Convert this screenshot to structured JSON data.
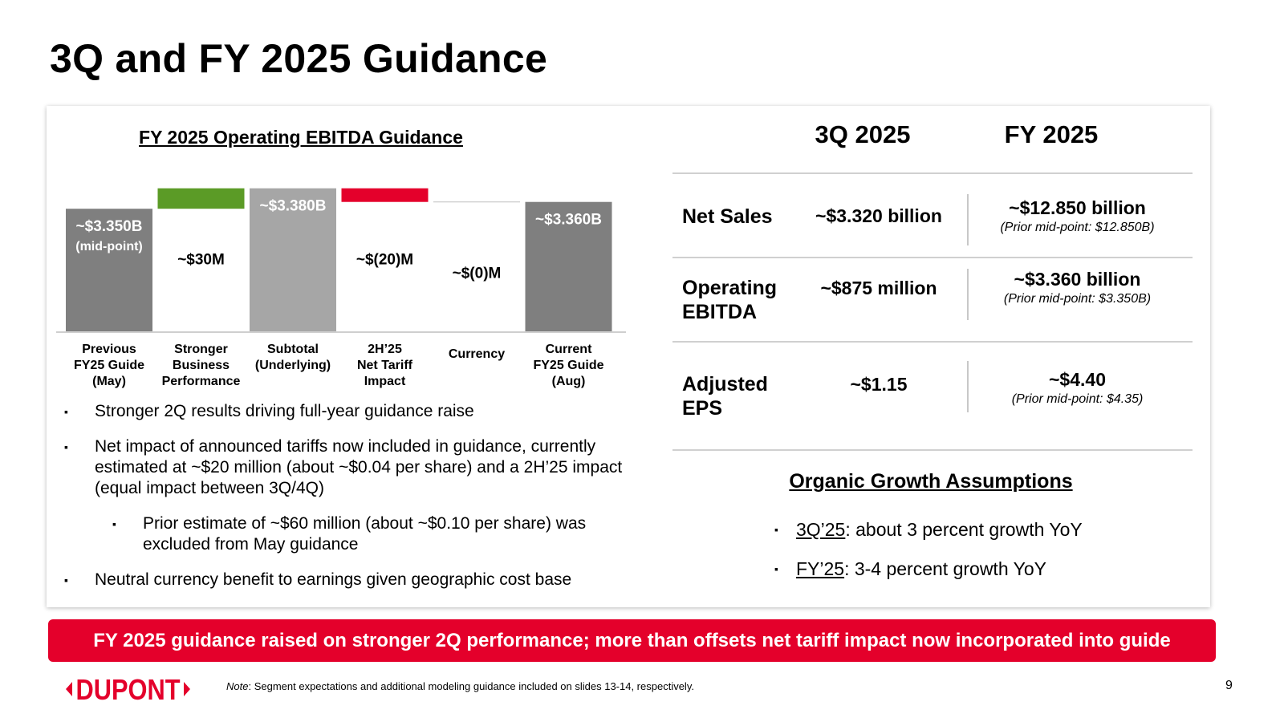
{
  "title": "3Q and FY 2025 Guidance",
  "chart_data": {
    "type": "waterfall",
    "title": "FY 2025 Operating EBITDA Guidance",
    "unit": "$B",
    "ylim": [
      3.17,
      3.395
    ],
    "bars": [
      {
        "label_lines": [
          "Previous",
          "FY25 Guide",
          "(May)"
        ],
        "kind": "total",
        "start": 0,
        "end": 3.35,
        "color": "#7f7f7f",
        "text_lines": [
          "~$3.350B",
          "(mid-point)"
        ],
        "text_pos": "inside"
      },
      {
        "label_lines": [
          "Stronger",
          "Business",
          "Performance"
        ],
        "kind": "increase",
        "start": 3.35,
        "end": 3.38,
        "color": "#5b9b26",
        "text_lines": [
          "~$30M"
        ],
        "text_pos": "below"
      },
      {
        "label_lines": [
          "Subtotal",
          "(Underlying)"
        ],
        "kind": "total",
        "start": 0,
        "end": 3.38,
        "color": "#a6a6a6",
        "text_lines": [
          "~$3.380B"
        ],
        "text_pos": "inside"
      },
      {
        "label_lines": [
          "2H’25",
          "Net Tariff",
          "Impact"
        ],
        "kind": "decrease",
        "start": 3.38,
        "end": 3.36,
        "color": "#e4002b",
        "text_lines": [
          "~$(20)M"
        ],
        "text_pos": "below"
      },
      {
        "label_lines": [
          "Currency"
        ],
        "kind": "neutral",
        "start": 3.36,
        "end": 3.36,
        "color": "#bfbfbf",
        "text_lines": [
          "~$(0)M"
        ],
        "text_pos": "below"
      },
      {
        "label_lines": [
          "Current",
          "FY25 Guide",
          "(Aug)"
        ],
        "kind": "total",
        "start": 0,
        "end": 3.36,
        "color": "#7f7f7f",
        "text_lines": [
          "~$3.360B"
        ],
        "text_pos": "inside"
      }
    ]
  },
  "left_bullets": [
    {
      "text": "Stronger 2Q results driving full-year guidance raise",
      "level": 1
    },
    {
      "text": "Net impact of announced tariffs now included in guidance, currently estimated at ~$20 million (about ~$0.04 per share) and a 2H’25 impact (equal impact between 3Q/4Q)",
      "level": 1
    },
    {
      "text": "Prior estimate of ~$60 million (about ~$0.10 per share) was excluded from May guidance",
      "level": 2
    },
    {
      "text": "Neutral currency benefit to earnings given geographic cost base",
      "level": 1
    }
  ],
  "bullet_mark": "▪",
  "table": {
    "col_3q": "3Q 2025",
    "col_fy": "FY 2025",
    "rows": [
      {
        "label": "Net Sales",
        "q3": "~$3.320 billion",
        "fy": "~$12.850 billion",
        "fy_prior": "(Prior mid-point: $12.850B)"
      },
      {
        "label": "Operating EBITDA",
        "q3": "~$875 million",
        "fy": "~$3.360 billion",
        "fy_prior": "(Prior mid-point: $3.350B)"
      },
      {
        "label": "Adjusted EPS",
        "q3": "~$1.15",
        "fy": "~$4.40",
        "fy_prior": "(Prior mid-point: $4.35)"
      }
    ]
  },
  "organic": {
    "title": "Organic Growth Assumptions",
    "items": [
      {
        "term": "3Q’25",
        "rest": ": about 3 percent growth YoY"
      },
      {
        "term": "FY’25",
        "rest": ": 3-4 percent growth YoY"
      }
    ]
  },
  "banner": "FY 2025 guidance raised on stronger 2Q performance; more than offsets net tariff impact now incorporated into guide",
  "footer": {
    "logo_text": "DUPONT",
    "note_label": "Note",
    "note_text": ": Segment expectations and additional modeling guidance included on slides 13-14, respectively.",
    "page_number": "9"
  },
  "colors": {
    "brand_red": "#e4002b",
    "increase_green": "#5b9b26",
    "dark_gray": "#7f7f7f",
    "light_gray": "#a6a6a6"
  }
}
